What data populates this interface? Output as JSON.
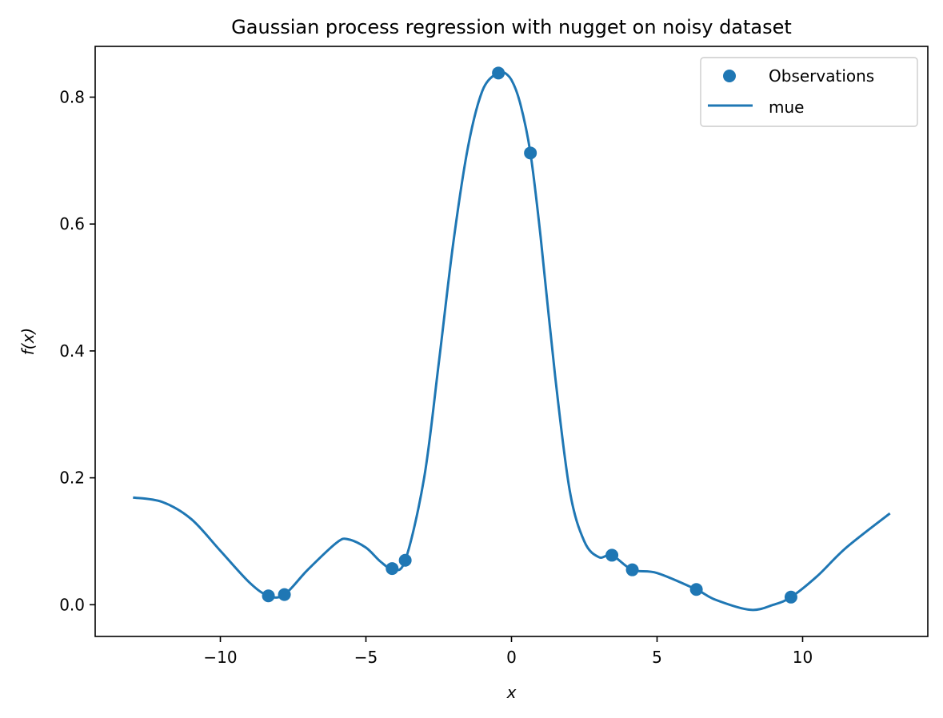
{
  "chart_data": {
    "type": "scatter+line",
    "title": "Gaussian process regression with nugget on noisy dataset",
    "xlabel": "x",
    "ylabel": "f(x)",
    "xlim": [
      -14.3,
      14.3
    ],
    "ylim": [
      -0.05,
      0.88
    ],
    "xticks": [
      -10,
      -5,
      0,
      5,
      10
    ],
    "xtick_labels": [
      "−10",
      "−5",
      "0",
      "5",
      "10"
    ],
    "yticks": [
      0.0,
      0.2,
      0.4,
      0.6,
      0.8
    ],
    "ytick_labels": [
      "0.0",
      "0.2",
      "0.4",
      "0.6",
      "0.8"
    ],
    "grid": false,
    "legend": {
      "placement": "top-right",
      "entries": [
        "Observations",
        "mue"
      ]
    },
    "colors": {
      "series": "#1f77b4"
    },
    "series": [
      {
        "name": "Observations",
        "kind": "scatter",
        "x": [
          -8.35,
          -7.8,
          -4.1,
          -3.65,
          -0.45,
          0.65,
          3.45,
          4.15,
          6.35,
          9.6
        ],
        "y": [
          0.014,
          0.016,
          0.057,
          0.07,
          0.838,
          0.712,
          0.078,
          0.055,
          0.024,
          0.012
        ]
      },
      {
        "name": "mue",
        "kind": "line",
        "x": [
          -13.0,
          -12.0,
          -11.0,
          -10.0,
          -9.0,
          -8.35,
          -7.8,
          -7.0,
          -6.0,
          -5.6,
          -5.0,
          -4.5,
          -4.1,
          -3.65,
          -3.0,
          -2.5,
          -2.0,
          -1.5,
          -1.0,
          -0.5,
          -0.3,
          0.0,
          0.3,
          0.65,
          1.0,
          1.5,
          2.0,
          2.5,
          3.0,
          3.45,
          4.15,
          5.0,
          6.35,
          7.0,
          8.2,
          9.0,
          9.6,
          10.5,
          11.5,
          13.0
        ],
        "y": [
          0.169,
          0.162,
          0.135,
          0.085,
          0.035,
          0.014,
          0.016,
          0.055,
          0.098,
          0.103,
          0.09,
          0.068,
          0.057,
          0.07,
          0.2,
          0.38,
          0.57,
          0.72,
          0.81,
          0.838,
          0.84,
          0.827,
          0.79,
          0.712,
          0.58,
          0.36,
          0.18,
          0.1,
          0.075,
          0.078,
          0.055,
          0.05,
          0.024,
          0.008,
          -0.008,
          0.0,
          0.012,
          0.045,
          0.09,
          0.144
        ]
      }
    ]
  }
}
